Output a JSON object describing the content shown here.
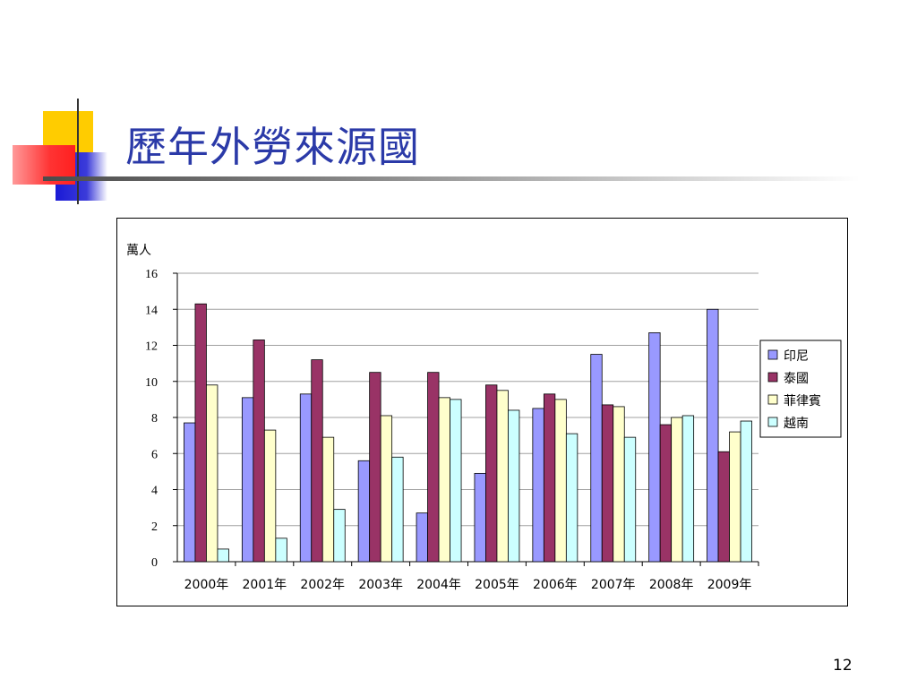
{
  "slide": {
    "title": "歷年外勞來源國",
    "page_number": "12"
  },
  "colors": {
    "title": "#2b3aa8",
    "series": [
      "#9999ff",
      "#993366",
      "#ffffcc",
      "#ccffff"
    ]
  },
  "chart_data": {
    "type": "bar",
    "title": "",
    "ylabel": "萬人",
    "xlabel": "",
    "categories": [
      "2000年",
      "2001年",
      "2002年",
      "2003年",
      "2004年",
      "2005年",
      "2006年",
      "2007年",
      "2008年",
      "2009年"
    ],
    "series": [
      {
        "name": "印尼",
        "values": [
          7.7,
          9.1,
          9.3,
          5.6,
          2.7,
          4.9,
          8.5,
          11.5,
          12.7,
          14.0
        ]
      },
      {
        "name": "泰國",
        "values": [
          14.3,
          12.3,
          11.2,
          10.5,
          10.5,
          9.8,
          9.3,
          8.7,
          7.6,
          6.1
        ]
      },
      {
        "name": "菲律賓",
        "values": [
          9.8,
          7.3,
          6.9,
          8.1,
          9.1,
          9.5,
          9.0,
          8.6,
          8.0,
          7.2
        ]
      },
      {
        "name": "越南",
        "values": [
          0.7,
          1.3,
          2.9,
          5.8,
          9.0,
          8.4,
          7.1,
          6.9,
          8.1,
          7.8
        ]
      }
    ],
    "ylim": [
      0,
      16
    ],
    "yticks": [
      0,
      2,
      4,
      6,
      8,
      10,
      12,
      14,
      16
    ],
    "grid": true,
    "legend_position": "right"
  }
}
